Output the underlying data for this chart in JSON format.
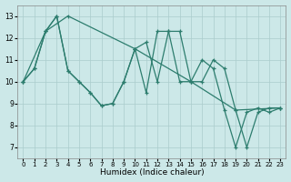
{
  "xlabel": "Humidex (Indice chaleur)",
  "xlim": [
    -0.5,
    23.5
  ],
  "ylim": [
    6.5,
    13.5
  ],
  "yticks": [
    7,
    8,
    9,
    10,
    11,
    12,
    13
  ],
  "xticks": [
    0,
    1,
    2,
    3,
    4,
    5,
    6,
    7,
    8,
    9,
    10,
    11,
    12,
    13,
    14,
    15,
    16,
    17,
    18,
    19,
    20,
    21,
    22,
    23
  ],
  "bg_color": "#cce8e8",
  "grid_color": "#aacccc",
  "line_color": "#2d7d6e",
  "line1_x": [
    0,
    1,
    2,
    3,
    4,
    5,
    6,
    7,
    8,
    9,
    10,
    11,
    12,
    13,
    14,
    15,
    16,
    17,
    18,
    19,
    20,
    21,
    22,
    23
  ],
  "line1_y": [
    10.0,
    10.6,
    12.3,
    13.0,
    10.5,
    10.0,
    9.5,
    8.9,
    9.0,
    10.0,
    11.5,
    9.5,
    12.3,
    12.3,
    10.0,
    10.0,
    11.0,
    10.6,
    8.7,
    7.0,
    8.6,
    8.8,
    8.6,
    8.8
  ],
  "line2_x": [
    0,
    1,
    2,
    3,
    4,
    5,
    6,
    7,
    8,
    9,
    10,
    11,
    12,
    13,
    14,
    15,
    16,
    17,
    18,
    19,
    20,
    21,
    22,
    23
  ],
  "line2_y": [
    10.0,
    10.6,
    12.3,
    13.0,
    10.5,
    10.0,
    9.5,
    8.9,
    9.0,
    10.0,
    11.5,
    11.8,
    10.0,
    12.3,
    12.3,
    10.0,
    10.0,
    11.0,
    10.6,
    8.7,
    7.0,
    8.6,
    8.8,
    8.8
  ],
  "line3_x": [
    0,
    2,
    4,
    10,
    15,
    19,
    23
  ],
  "line3_y": [
    10.0,
    12.3,
    13.0,
    11.5,
    10.0,
    8.7,
    8.8
  ]
}
